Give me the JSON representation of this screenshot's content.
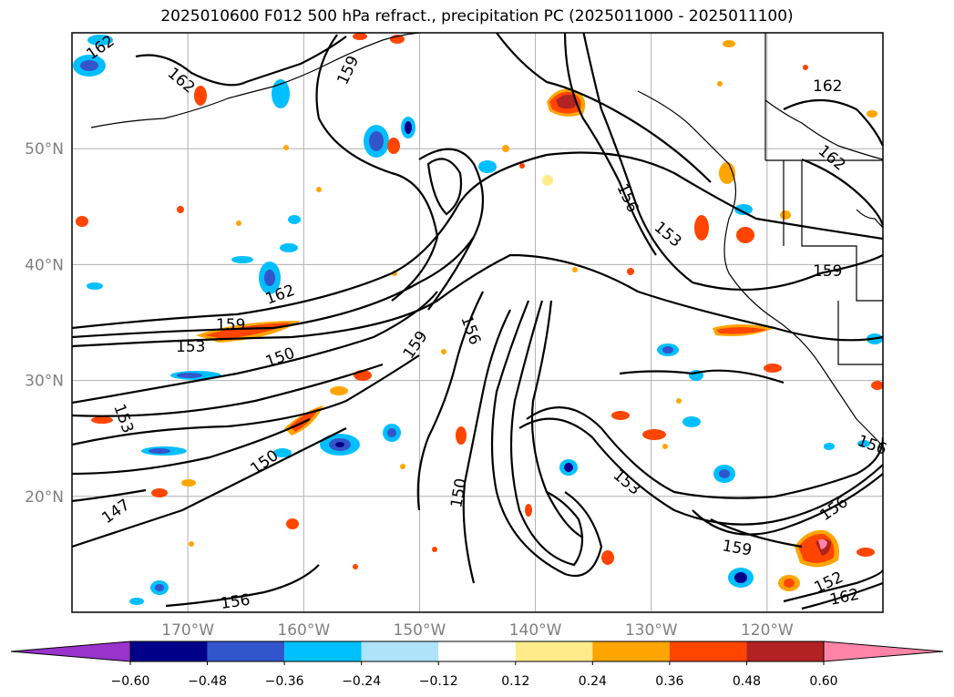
{
  "title": "2025010600 F012 500 hPa refract., precipitation PC (2025011000 - 2025011100)",
  "map": {
    "lat_labels": [
      "50°N",
      "40°N",
      "30°N",
      "20°N"
    ],
    "lat_values": [
      50,
      40,
      30,
      20
    ],
    "lon_labels": [
      "170°W",
      "160°W",
      "150°W",
      "140°W",
      "130°W",
      "120°W"
    ],
    "lon_values": [
      -170,
      -160,
      -150,
      -140,
      -130,
      -120
    ],
    "lon_range": [
      -180,
      -110
    ],
    "lat_range": [
      10,
      60
    ],
    "grid": true,
    "contour_color": "#000000",
    "contour_labels": [
      "162",
      "162",
      "159",
      "156",
      "153",
      "162",
      "159",
      "153",
      "150",
      "159",
      "156",
      "153",
      "150",
      "147",
      "150",
      "153",
      "159",
      "156",
      "152",
      "162",
      "159",
      "162",
      "156"
    ]
  },
  "colorbar": {
    "ticks": [
      "−0.60",
      "−0.48",
      "−0.36",
      "−0.24",
      "−0.12",
      "0.12",
      "0.24",
      "0.36",
      "0.48",
      "0.60"
    ],
    "bounds": [
      -0.6,
      -0.48,
      -0.36,
      -0.24,
      -0.12,
      0.12,
      0.24,
      0.36,
      0.48,
      0.6
    ],
    "colors": [
      "#9933cc",
      "#00008b",
      "#3355cc",
      "#00bfff",
      "#aee3fa",
      "#ffffff",
      "#ffeb8a",
      "#ffa500",
      "#ff4500",
      "#b22222",
      "#ff85a8"
    ]
  }
}
